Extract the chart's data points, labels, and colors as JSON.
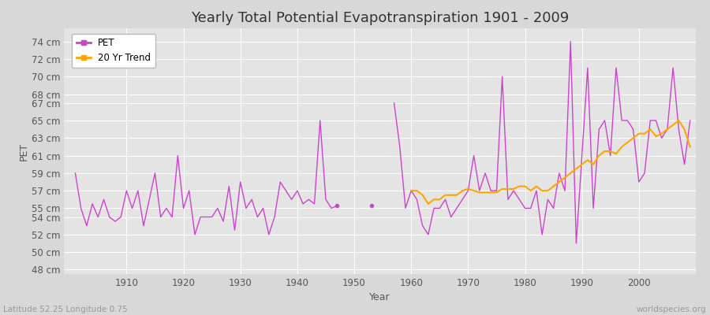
{
  "title": "Yearly Total Potential Evapotranspiration 1901 - 2009",
  "xlabel": "Year",
  "ylabel": "PET",
  "subtitle": "Latitude 52.25 Longitude 0.75",
  "watermark": "worldspecies.org",
  "pet_color": "#CC44CC",
  "trend_color": "#FFA500",
  "bg_color": "#D8D8D8",
  "plot_bg_color": "#E4E4E4",
  "grid_color": "#FFFFFF",
  "ylim": [
    47.5,
    75.5
  ],
  "ytick_positions": [
    48,
    50,
    52,
    54,
    55,
    57,
    59,
    61,
    63,
    65,
    67,
    68,
    70,
    72,
    74
  ],
  "xlim": [
    1899,
    2010
  ],
  "xtick_positions": [
    1910,
    1920,
    1930,
    1940,
    1950,
    1960,
    1970,
    1980,
    1990,
    2000
  ],
  "years": [
    1901,
    1902,
    1903,
    1904,
    1905,
    1906,
    1907,
    1908,
    1909,
    1910,
    1911,
    1912,
    1913,
    1914,
    1915,
    1916,
    1917,
    1918,
    1919,
    1920,
    1921,
    1922,
    1923,
    1924,
    1925,
    1926,
    1927,
    1928,
    1929,
    1930,
    1931,
    1932,
    1933,
    1934,
    1935,
    1936,
    1937,
    1938,
    1939,
    1940,
    1941,
    1942,
    1943,
    1944,
    1945,
    1946,
    1947,
    1948,
    1949,
    1950,
    1951,
    1952,
    1953,
    1954,
    1955,
    1956,
    1957,
    1958,
    1959,
    1960,
    1961,
    1962,
    1963,
    1964,
    1965,
    1966,
    1967,
    1968,
    1969,
    1970,
    1971,
    1972,
    1973,
    1974,
    1975,
    1976,
    1977,
    1978,
    1979,
    1980,
    1981,
    1982,
    1983,
    1984,
    1985,
    1986,
    1987,
    1988,
    1989,
    1990,
    1991,
    1992,
    1993,
    1994,
    1995,
    1996,
    1997,
    1998,
    1999,
    2000,
    2001,
    2002,
    2003,
    2004,
    2005,
    2006,
    2007,
    2008,
    2009
  ],
  "pet_values": [
    59.0,
    55.0,
    53.0,
    55.5,
    54.0,
    56.0,
    54.0,
    53.5,
    54.0,
    57.0,
    55.0,
    57.0,
    53.0,
    56.0,
    59.0,
    54.0,
    55.0,
    54.0,
    61.0,
    55.0,
    57.0,
    52.0,
    54.0,
    54.0,
    54.0,
    55.0,
    53.5,
    57.5,
    52.5,
    58.0,
    55.0,
    56.0,
    54.0,
    55.0,
    52.0,
    54.0,
    58.0,
    57.0,
    56.0,
    57.0,
    55.5,
    56.0,
    55.5,
    65.0,
    56.0,
    55.0,
    55.3,
    null,
    null,
    null,
    null,
    null,
    55.3,
    null,
    null,
    null,
    67.0,
    62.0,
    55.0,
    57.0,
    56.0,
    53.0,
    52.0,
    55.0,
    55.0,
    56.0,
    54.0,
    55.0,
    56.0,
    57.0,
    61.0,
    57.0,
    59.0,
    57.0,
    57.0,
    70.0,
    56.0,
    57.0,
    56.0,
    55.0,
    55.0,
    57.0,
    52.0,
    56.0,
    55.0,
    59.0,
    57.0,
    74.0,
    51.0,
    61.0,
    71.0,
    55.0,
    64.0,
    65.0,
    61.0,
    71.0,
    65.0,
    65.0,
    64.0,
    58.0,
    59.0,
    65.0,
    65.0,
    63.0,
    64.0,
    71.0,
    64.0,
    60.0,
    65.0
  ],
  "isolated_points": [
    {
      "year": 1947,
      "value": 55.3
    },
    {
      "year": 1953,
      "value": 55.3
    }
  ],
  "trend_years": [
    1960,
    1961,
    1962,
    1963,
    1964,
    1965,
    1966,
    1967,
    1968,
    1969,
    1970,
    1971,
    1972,
    1973,
    1974,
    1975,
    1976,
    1977,
    1978,
    1979,
    1980,
    1981,
    1982,
    1983,
    1984,
    1985,
    1986,
    1987,
    1988,
    1989,
    1990,
    1991,
    1992,
    1993,
    1994,
    1995,
    1996,
    1997,
    1998,
    1999,
    2000,
    2001,
    2002,
    2003,
    2004,
    2005,
    2006,
    2007,
    2008,
    2009
  ],
  "trend_values": [
    57.0,
    57.0,
    56.5,
    55.5,
    56.0,
    56.0,
    56.5,
    56.5,
    56.5,
    57.0,
    57.2,
    57.0,
    56.8,
    56.8,
    56.8,
    56.8,
    57.2,
    57.2,
    57.2,
    57.5,
    57.5,
    57.0,
    57.5,
    57.0,
    57.0,
    57.5,
    58.0,
    58.5,
    59.0,
    59.5,
    60.0,
    60.5,
    60.0,
    61.0,
    61.5,
    61.5,
    61.2,
    62.0,
    62.5,
    63.0,
    63.5,
    63.5,
    64.0,
    63.2,
    63.5,
    64.0,
    64.5,
    65.0,
    64.0,
    62.0
  ],
  "title_fontsize": 13,
  "axis_label_fontsize": 9,
  "tick_fontsize": 8.5,
  "legend_fontsize": 8.5
}
